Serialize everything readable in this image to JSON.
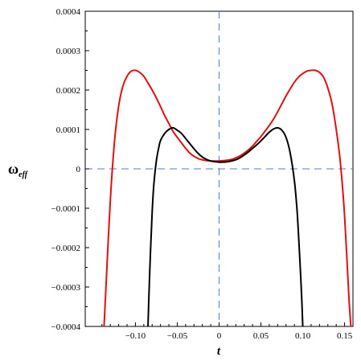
{
  "chart_data": {
    "type": "line",
    "title": "",
    "xlabel": "t",
    "ylabel": "ω",
    "ylabel_sub": "eff",
    "xlim": [
      -0.16,
      0.16
    ],
    "ylim": [
      -0.0004,
      0.0004
    ],
    "xticks": [
      {
        "value": -0.1,
        "label": "−0.10"
      },
      {
        "value": -0.05,
        "label": "−0.05"
      },
      {
        "value": 0,
        "label": "0"
      },
      {
        "value": 0.05,
        "label": "0.05"
      },
      {
        "value": 0.1,
        "label": "0.10"
      },
      {
        "value": 0.15,
        "label": "0.15"
      }
    ],
    "yticks": [
      {
        "value": 0.0004,
        "label": "0.0004"
      },
      {
        "value": 0.0003,
        "label": "0.0003"
      },
      {
        "value": 0.0002,
        "label": "0.0002"
      },
      {
        "value": 0.0001,
        "label": "0.0001"
      },
      {
        "value": 0,
        "label": "0"
      },
      {
        "value": -0.0001,
        "label": "−0.0001"
      },
      {
        "value": -0.0002,
        "label": "−0.0002"
      },
      {
        "value": -0.0003,
        "label": "−0.0003"
      },
      {
        "value": -0.0004,
        "label": "−0.0004"
      }
    ],
    "reference_lines": {
      "x": 0,
      "y": 0,
      "color": "#4a7fd4",
      "style": "dashed"
    },
    "grid": false,
    "legend": "none",
    "series": [
      {
        "color": "#e01010",
        "x": [
          -0.1375,
          -0.135,
          -0.13,
          -0.125,
          -0.12,
          -0.115,
          -0.11,
          -0.105,
          -0.1,
          -0.095,
          -0.09,
          -0.085,
          -0.08,
          -0.075,
          -0.07,
          -0.065,
          -0.06,
          -0.055,
          -0.05,
          -0.045,
          -0.04,
          -0.035,
          -0.03,
          -0.025,
          -0.02,
          -0.015,
          -0.01,
          -0.005,
          0,
          0.005,
          0.01,
          0.015,
          0.02,
          0.025,
          0.03,
          0.035,
          0.04,
          0.045,
          0.05,
          0.055,
          0.06,
          0.065,
          0.07,
          0.075,
          0.08,
          0.085,
          0.09,
          0.095,
          0.1,
          0.105,
          0.11,
          0.115,
          0.12,
          0.125,
          0.13,
          0.135,
          0.14,
          0.145,
          0.15,
          0.155,
          0.1575
        ],
        "y": [
          -0.0004,
          -0.00029,
          -8e-05,
          7e-05,
          0.00016,
          0.00021,
          0.000235,
          0.000248,
          0.00025,
          0.000245,
          0.000235,
          0.000218,
          0.0002,
          0.00018,
          0.000158,
          0.000135,
          0.000115,
          9.5e-05,
          8e-05,
          6.6e-05,
          5.2e-05,
          4e-05,
          3.2e-05,
          2.6e-05,
          2.3e-05,
          2.1e-05,
          2e-05,
          2e-05,
          2e-05,
          2.1e-05,
          2.2e-05,
          2.4e-05,
          2.8e-05,
          3.3e-05,
          4e-05,
          4.8e-05,
          5.8e-05,
          7e-05,
          8.2e-05,
          9.6e-05,
          0.00011,
          0.000126,
          0.000145,
          0.000165,
          0.000185,
          0.000203,
          0.00022,
          0.000233,
          0.000242,
          0.000248,
          0.00025,
          0.00025,
          0.000245,
          0.000232,
          0.000205,
          0.000165,
          0.0001,
          1.5e-05,
          -0.00012,
          -0.00032,
          -0.0004
        ]
      },
      {
        "color": "#000000",
        "x": [
          -0.085,
          -0.084,
          -0.082,
          -0.08,
          -0.078,
          -0.075,
          -0.072,
          -0.07,
          -0.065,
          -0.06,
          -0.055,
          -0.05,
          -0.045,
          -0.04,
          -0.035,
          -0.03,
          -0.025,
          -0.02,
          -0.015,
          -0.01,
          -0.005,
          0,
          0.005,
          0.01,
          0.015,
          0.02,
          0.025,
          0.03,
          0.035,
          0.04,
          0.045,
          0.05,
          0.055,
          0.06,
          0.065,
          0.07,
          0.075,
          0.08,
          0.085,
          0.09,
          0.093,
          0.095,
          0.097,
          0.099,
          0.1
        ],
        "y": [
          -0.0004,
          -0.00033,
          -0.00021,
          -0.00011,
          -4e-05,
          2e-05,
          5.5e-05,
          7.2e-05,
          9e-05,
          0.0001,
          0.000104,
          9.8e-05,
          9e-05,
          7.7e-05,
          6.4e-05,
          5.1e-05,
          3.9e-05,
          3e-05,
          2.4e-05,
          2e-05,
          1.8e-05,
          1.7e-05,
          1.7e-05,
          1.8e-05,
          2e-05,
          2.3e-05,
          2.8e-05,
          3.5e-05,
          4.3e-05,
          5.2e-05,
          6.1e-05,
          7.1e-05,
          8.2e-05,
          9.3e-05,
          0.000101,
          0.000104,
          9.8e-05,
          8e-05,
          4e-05,
          -3e-05,
          -0.0001,
          -0.00017,
          -0.00025,
          -0.00034,
          -0.0004
        ]
      }
    ]
  }
}
